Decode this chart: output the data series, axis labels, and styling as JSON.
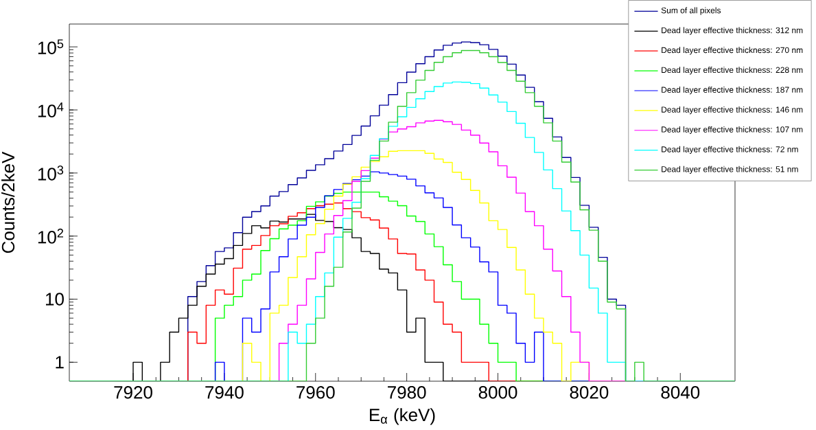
{
  "chart_data": {
    "type": "histogram",
    "xlabel": "E$_{α}$ (keV)",
    "ylabel": "Counts/2keV",
    "bins": [
      7906,
      7908,
      7910,
      7912,
      7914,
      7916,
      7918,
      7920,
      7922,
      7924,
      7926,
      7928,
      7930,
      7932,
      7934,
      7936,
      7938,
      7940,
      7942,
      7944,
      7946,
      7948,
      7950,
      7952,
      7954,
      7956,
      7958,
      7960,
      7962,
      7964,
      7966,
      7968,
      7970,
      7972,
      7974,
      7976,
      7978,
      7980,
      7982,
      7984,
      7986,
      7988,
      7990,
      7992,
      7994,
      7996,
      7998,
      8000,
      8002,
      8004,
      8006,
      8008,
      8010,
      8012,
      8014,
      8016,
      8018,
      8020,
      8022,
      8024,
      8026,
      8028,
      8030,
      8032,
      8034,
      8036,
      8038,
      8040,
      8042,
      8044,
      8046,
      8048,
      8050,
      8052
    ],
    "xlim": [
      7906,
      8052
    ],
    "ylim": [
      0.5,
      230000
    ],
    "log": true,
    "legend": "top right",
    "xticks": [
      7920,
      7940,
      7960,
      7980,
      8000,
      8020,
      8040
    ],
    "yticks": [
      1,
      10,
      {
        "value": 100,
        "label": "10$^{2}$"
      },
      {
        "value": 1000,
        "label": "10$^{3}$"
      },
      {
        "value": 10000,
        "label": "10$^{4}$"
      },
      {
        "value": 100000,
        "label": "10$^{5}$"
      }
    ],
    "series": [
      {
        "name": "Sum of all pixels",
        "color": "#000099",
        "values": [
          null,
          null,
          null,
          null,
          null,
          null,
          null,
          null,
          null,
          null,
          null,
          null,
          null,
          11,
          19,
          34,
          57,
          65,
          113,
          199,
          245,
          301,
          430,
          508,
          655,
          836,
          1100,
          1350,
          1690,
          2230,
          2830,
          3950,
          5560,
          8070,
          11900,
          17500,
          27000,
          39800,
          54100,
          69900,
          89100,
          106000,
          115000,
          120000,
          117000,
          108000,
          91200,
          71100,
          53200,
          35700,
          22800,
          13500,
          7360,
          3730,
          1765,
          850,
          308,
          138,
          46,
          10,
          8,
          null,
          null,
          null,
          null,
          null,
          null,
          null,
          null,
          null,
          null,
          null,
          null
        ]
      },
      {
        "name": "Dead layer effective thickness: 312 nm",
        "color": "#000000",
        "values": [
          null,
          null,
          null,
          null,
          null,
          null,
          null,
          1,
          null,
          null,
          1,
          3,
          5,
          8,
          16,
          25,
          36,
          44,
          71,
          110,
          146,
          135,
          173,
          167,
          187,
          187,
          221,
          177,
          170,
          136,
          127,
          94,
          57,
          53,
          30,
          26,
          14,
          3,
          5,
          1,
          1,
          null,
          null,
          null,
          null,
          null,
          null,
          null,
          null,
          null,
          null,
          null,
          null,
          null,
          null,
          null,
          null,
          null,
          null,
          null,
          null,
          null,
          null,
          null,
          null,
          null,
          null,
          null,
          null,
          null,
          null,
          null,
          null
        ]
      },
      {
        "name": "Dead layer effective thickness: 270 nm",
        "color": "#ff0000",
        "values": [
          null,
          null,
          null,
          null,
          null,
          null,
          null,
          null,
          null,
          null,
          null,
          null,
          null,
          3,
          2,
          8,
          14,
          12,
          31,
          62,
          71,
          102,
          146,
          157,
          206,
          234,
          272,
          303,
          321,
          335,
          272,
          244,
          196,
          180,
          134,
          90,
          53,
          52,
          29,
          20,
          9,
          4,
          3,
          1,
          1,
          1,
          null,
          null,
          null,
          null,
          null,
          null,
          null,
          null,
          null,
          null,
          null,
          null,
          null,
          null,
          null,
          null,
          null,
          null,
          null,
          null,
          null,
          null,
          null,
          null,
          null,
          null,
          null
        ]
      },
      {
        "name": "Dead layer effective thickness: 228 nm",
        "color": "#00ff00",
        "values": [
          null,
          null,
          null,
          null,
          null,
          null,
          null,
          null,
          null,
          null,
          null,
          null,
          null,
          null,
          null,
          null,
          5,
          8,
          11,
          20,
          25,
          59,
          91,
          130,
          149,
          175,
          296,
          349,
          430,
          475,
          499,
          499,
          499,
          499,
          419,
          358,
          303,
          208,
          170,
          108,
          68,
          35,
          19,
          10,
          10,
          4,
          2,
          1,
          1,
          null,
          null,
          null,
          null,
          null,
          null,
          null,
          null,
          null,
          null,
          null,
          null,
          null,
          null,
          null,
          null,
          null,
          null,
          null,
          null,
          null,
          null,
          null,
          null
        ]
      },
      {
        "name": "Dead layer effective thickness: 187 nm",
        "color": "#0000ff",
        "values": [
          null,
          null,
          null,
          null,
          null,
          null,
          null,
          null,
          null,
          null,
          null,
          null,
          null,
          null,
          null,
          null,
          1,
          null,
          null,
          5,
          3,
          7,
          27,
          47,
          90,
          149,
          199,
          284,
          437,
          547,
          680,
          782,
          894,
          1045,
          1000,
          946,
          894,
          798,
          625,
          485,
          403,
          284,
          150,
          94,
          67,
          39,
          27,
          8,
          6,
          2,
          1,
          3,
          null,
          null,
          null,
          null,
          null,
          null,
          null,
          null,
          null,
          null,
          null,
          null,
          null,
          null,
          null,
          null,
          null,
          null,
          null,
          null,
          null
        ]
      },
      {
        "name": "Dead layer effective thickness: 146 nm",
        "color": "#ffff00",
        "values": [
          null,
          null,
          null,
          null,
          null,
          null,
          null,
          null,
          null,
          null,
          null,
          null,
          null,
          null,
          null,
          null,
          null,
          null,
          null,
          2,
          1,
          null,
          6,
          8,
          22,
          47,
          105,
          158,
          266,
          430,
          663,
          871,
          1236,
          1520,
          1810,
          2210,
          2260,
          2260,
          2260,
          2050,
          1667,
          1471,
          1028,
          789,
          530,
          335,
          175,
          127,
          66,
          29,
          12,
          5,
          3,
          2,
          null,
          1,
          1,
          null,
          null,
          null,
          null,
          null,
          null,
          null,
          null,
          null,
          null,
          null,
          null,
          null,
          null,
          null,
          null
        ]
      },
      {
        "name": "Dead layer effective thickness: 107 nm",
        "color": "#ff00ff",
        "values": [
          null,
          null,
          null,
          null,
          null,
          null,
          null,
          null,
          null,
          null,
          null,
          null,
          null,
          null,
          null,
          null,
          null,
          null,
          null,
          null,
          null,
          null,
          null,
          2,
          4,
          8,
          21,
          55,
          108,
          212,
          365,
          738,
          1091,
          1720,
          3434,
          4474,
          5000,
          5420,
          6240,
          6670,
          6840,
          6500,
          5890,
          4790,
          3990,
          2980,
          2170,
          1300,
          857,
          480,
          245,
          146,
          62,
          28,
          11,
          3,
          1,
          null,
          null,
          null,
          null,
          null,
          null,
          null,
          null,
          null,
          null,
          null,
          null,
          null,
          null,
          null,
          null
        ]
      },
      {
        "name": "Dead layer effective thickness: 72 nm",
        "color": "#00ffff",
        "values": [
          null,
          null,
          null,
          null,
          null,
          null,
          null,
          null,
          null,
          null,
          null,
          null,
          null,
          null,
          null,
          null,
          null,
          null,
          null,
          null,
          null,
          null,
          null,
          null,
          3,
          2,
          4,
          11,
          26,
          96,
          191,
          343,
          815,
          1900,
          3500,
          5500,
          7800,
          10970,
          15040,
          19600,
          23500,
          26700,
          27800,
          27500,
          26200,
          22200,
          17300,
          13300,
          9440,
          6140,
          3660,
          2120,
          1120,
          565,
          250,
          122,
          50,
          15,
          6,
          1,
          1,
          null,
          null,
          null,
          null,
          null,
          null,
          null,
          null,
          null,
          null,
          null,
          null
        ]
      },
      {
        "name": "Dead layer effective thickness: 51 nm",
        "color": "#33cc33",
        "values": [
          null,
          null,
          null,
          null,
          null,
          null,
          null,
          null,
          null,
          null,
          null,
          null,
          null,
          null,
          null,
          null,
          null,
          null,
          null,
          null,
          null,
          null,
          null,
          null,
          null,
          null,
          2,
          5,
          16,
          32,
          116,
          277,
          738,
          1590,
          3210,
          6400,
          11400,
          18800,
          29700,
          42400,
          56800,
          69900,
          80600,
          87600,
          87600,
          80600,
          69900,
          56400,
          42400,
          28500,
          18800,
          11400,
          6240,
          3210,
          1490,
          720,
          261,
          124,
          40,
          9,
          7,
          null,
          1,
          null,
          null,
          null,
          null,
          null,
          null,
          null,
          null,
          null,
          null
        ]
      }
    ]
  }
}
